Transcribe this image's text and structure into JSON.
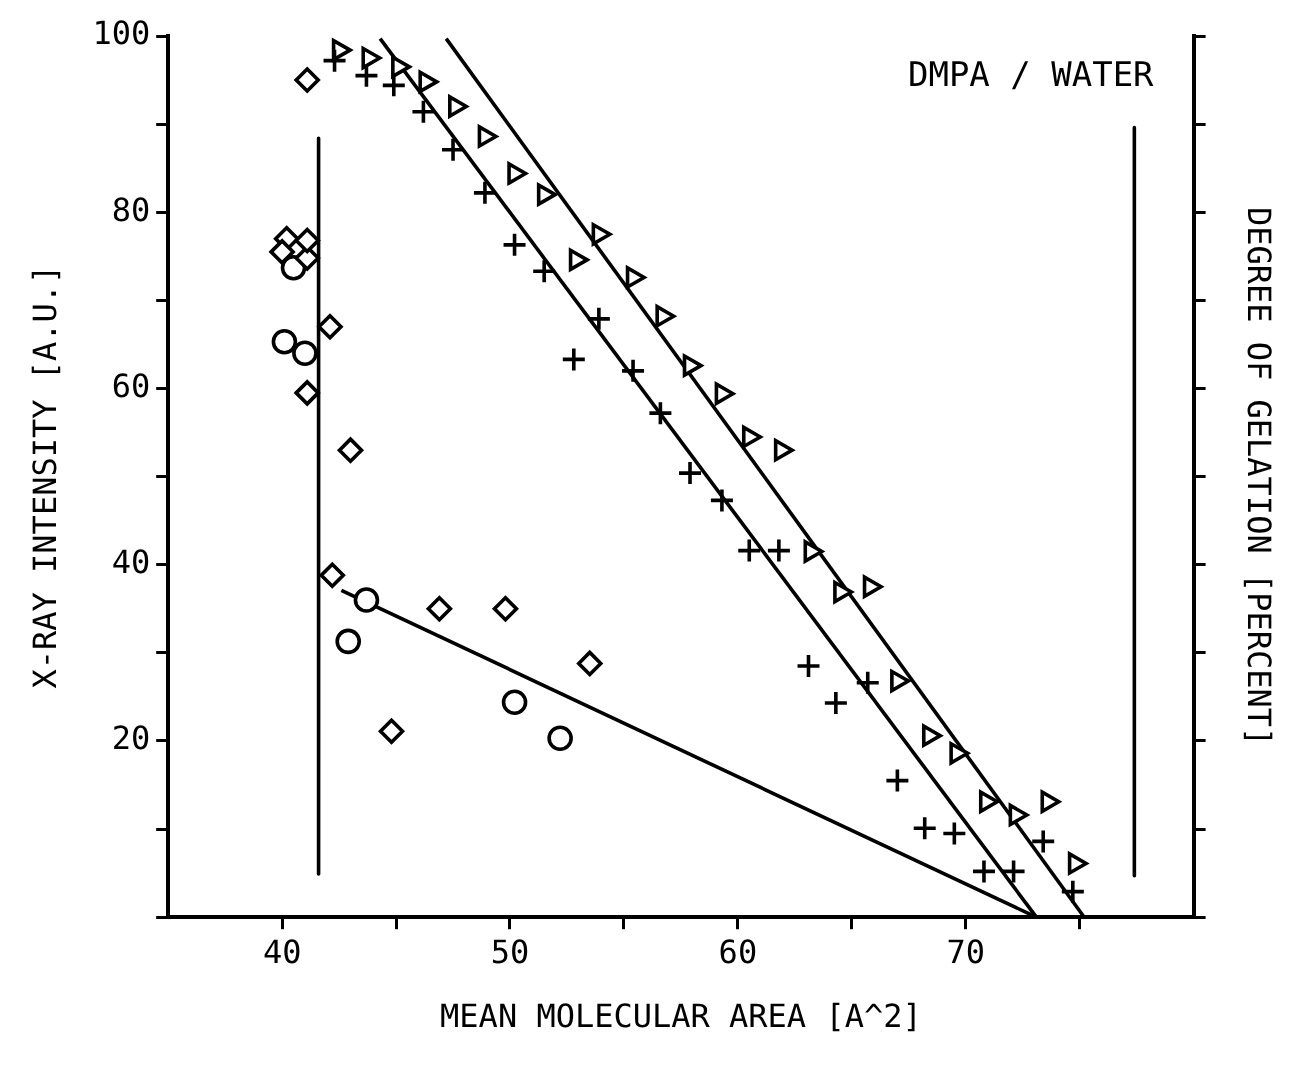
{
  "chart_data": {
    "type": "scatter",
    "xlabel": "MEAN MOLECULAR AREA [A^2]",
    "ylabel": "X-RAY INTENSITY [A.U.]",
    "y2label": "DEGREE OF GELATION [PERCENT]",
    "annotations": [
      "DMPA / WATER"
    ],
    "xlim": [
      35,
      80
    ],
    "xticks": [
      40,
      {
        "value": 45,
        "label": null
      },
      50,
      {
        "value": 55,
        "label": null
      },
      60,
      {
        "value": 65,
        "label": null
      },
      70,
      {
        "value": 75,
        "label": null
      }
    ],
    "ylim": [
      0,
      100
    ],
    "yticks": [
      {
        "value": 0,
        "label": null
      },
      {
        "value": 10,
        "label": null
      },
      20,
      {
        "value": 30,
        "label": null
      },
      40,
      {
        "value": 50,
        "label": null
      },
      60,
      {
        "value": 70,
        "label": null
      },
      80,
      {
        "value": 90,
        "label": null
      },
      100
    ],
    "grid": false,
    "legend": false,
    "series": [
      {
        "color": "#000000",
        "marker": "diamond",
        "x": [
          41.1,
          41.1,
          42.1,
          43.0,
          44.8
        ],
        "values": [
          95.0,
          76.8,
          67.0,
          53.0,
          21.1
        ]
      },
      {
        "color": "#000000",
        "marker": "diamond",
        "x": [
          40.2,
          40.0,
          41.1,
          41.1,
          42.2,
          46.9,
          49.8,
          53.5
        ],
        "values": [
          77.0,
          75.5,
          74.8,
          59.5,
          38.8,
          35.0,
          35.0,
          28.8
        ]
      },
      {
        "color": "#000000",
        "marker": "circle",
        "x": [
          40.5,
          40.1,
          41.0,
          43.7,
          42.9,
          50.2,
          52.2
        ],
        "values": [
          73.7,
          65.3,
          64.0,
          36.0,
          31.3,
          24.4,
          20.3
        ]
      },
      {
        "color": "#000000",
        "marker": "cross",
        "x": [
          42.3,
          43.7,
          44.9,
          46.2,
          47.5,
          48.9,
          50.2,
          51.5,
          53.9,
          52.8,
          55.4,
          56.6,
          57.9,
          59.3,
          60.5,
          61.8,
          63.1,
          64.3,
          65.7,
          67.0,
          68.2,
          69.5,
          70.8,
          72.1,
          73.4,
          74.7
        ],
        "values": [
          97.2,
          95.5,
          94.4,
          91.4,
          87.1,
          82.2,
          76.3,
          73.3,
          67.9,
          63.3,
          62.0,
          57.2,
          50.4,
          47.3,
          41.6,
          41.6,
          28.5,
          24.3,
          26.6,
          15.5,
          10.1,
          9.5,
          5.2,
          5.2,
          8.6,
          2.9
        ]
      },
      {
        "color": "#000000",
        "marker": "triangle",
        "x": [
          42.5,
          43.8,
          45.1,
          46.3,
          47.6,
          48.9,
          50.2,
          51.5,
          52.9,
          53.9,
          55.4,
          56.7,
          57.9,
          59.3,
          60.5,
          61.9,
          63.2,
          64.5,
          65.8,
          67.0,
          68.4,
          69.6,
          70.9,
          72.2,
          73.6,
          74.8
        ],
        "values": [
          98.4,
          97.5,
          96.5,
          94.8,
          92.0,
          88.6,
          84.4,
          82.0,
          74.6,
          77.5,
          72.6,
          68.2,
          62.6,
          59.4,
          54.5,
          53.0,
          41.5,
          36.9,
          37.5,
          26.8,
          20.6,
          18.6,
          13.1,
          11.6,
          13.1,
          6.1
        ]
      },
      {
        "type": "line",
        "color": "#000000",
        "marker": "none",
        "x": [
          41.6,
          41.6
        ],
        "values": [
          88.4,
          4.9
        ]
      },
      {
        "type": "line",
        "color": "#000000",
        "marker": "none",
        "x": [
          42.6,
          73.1
        ],
        "values": [
          37.1,
          0
        ]
      },
      {
        "type": "line",
        "color": "#000000",
        "marker": "none",
        "x": [
          44.3,
          73.1
        ],
        "values": [
          99.7,
          0
        ]
      },
      {
        "type": "line",
        "color": "#000000",
        "marker": "none",
        "x": [
          47.2,
          75.2
        ],
        "values": [
          99.7,
          0
        ]
      },
      {
        "type": "line",
        "color": "#000000",
        "marker": "none",
        "x": [
          77.4,
          77.4
        ],
        "values": [
          89.6,
          4.7
        ]
      }
    ]
  }
}
